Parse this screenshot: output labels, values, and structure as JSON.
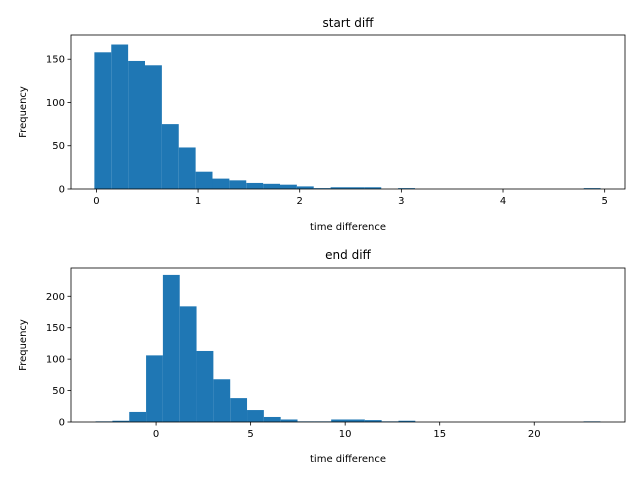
{
  "chart_data": [
    {
      "type": "bar",
      "title": "start diff",
      "xlabel": "time difference",
      "ylabel": "Frequency",
      "xlim": [
        -0.25,
        5.2
      ],
      "ylim": [
        0,
        178
      ],
      "xticks": [
        0,
        1,
        2,
        3,
        4,
        5
      ],
      "xtick_labels": [
        "0",
        "1",
        "2",
        "3",
        "4",
        "5"
      ],
      "yticks": [
        0,
        50,
        100,
        150
      ],
      "ytick_labels": [
        "0",
        "50",
        "100",
        "150"
      ],
      "bin_start": -0.02,
      "bin_width": 0.166,
      "values": [
        158,
        167,
        148,
        143,
        75,
        48,
        20,
        12,
        10,
        7,
        6,
        5,
        3,
        1,
        2,
        2,
        2,
        0,
        1,
        0,
        0,
        0,
        0,
        0,
        0,
        0,
        0,
        0,
        0,
        1
      ],
      "bar_color": "#1f77b4",
      "grid": false
    },
    {
      "type": "bar",
      "title": "end diff",
      "xlabel": "time difference",
      "ylabel": "Frequency",
      "xlim": [
        -4.5,
        24.8
      ],
      "ylim": [
        0,
        245
      ],
      "xticks": [
        0,
        5,
        10,
        15,
        20
      ],
      "xtick_labels": [
        "0",
        "5",
        "10",
        "15",
        "20"
      ],
      "yticks": [
        0,
        50,
        100,
        150,
        200
      ],
      "ytick_labels": [
        "0",
        "50",
        "100",
        "150",
        "200"
      ],
      "bin_start": -3.2,
      "bin_width": 0.89,
      "values": [
        1,
        2,
        16,
        106,
        234,
        184,
        113,
        68,
        38,
        19,
        8,
        4,
        1,
        1,
        4,
        4,
        3,
        1,
        2,
        0,
        0,
        0,
        0,
        0,
        0,
        0,
        0,
        0,
        0,
        1
      ],
      "bar_color": "#1f77b4",
      "grid": false
    }
  ]
}
